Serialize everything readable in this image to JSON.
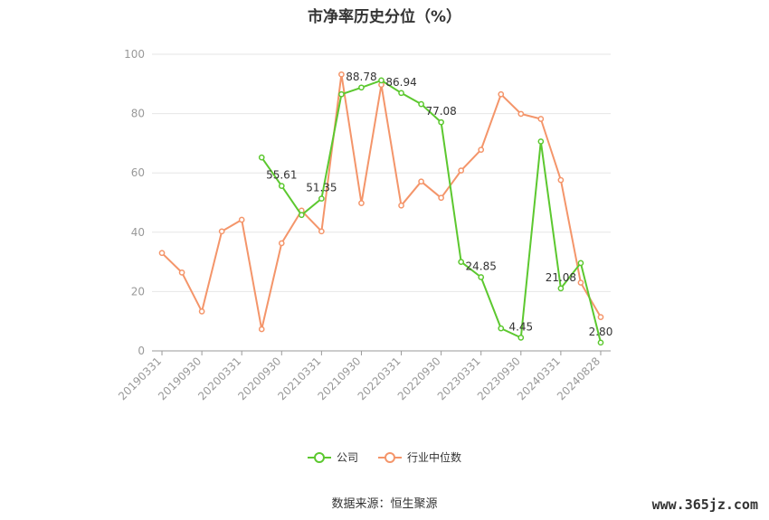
{
  "chart_data": {
    "type": "line",
    "title": "市净率历史分位（%）",
    "xlabel": "",
    "ylabel": "",
    "ylim": [
      0,
      100
    ],
    "yticks": [
      "0",
      "20",
      "40",
      "60",
      "80",
      "100"
    ],
    "grid": true,
    "legend_position": "bottom",
    "x": [
      "20190331",
      "20190630",
      "20190930",
      "20191231",
      "20200331",
      "20200630",
      "20200930",
      "20201231",
      "20210331",
      "20210630",
      "20210930",
      "20211231",
      "20220331",
      "20220630",
      "20220930",
      "20221231",
      "20230331",
      "20230630",
      "20230930",
      "20231231",
      "20240331",
      "20240630",
      "20240828"
    ],
    "x_tick_labels": [
      "20190331",
      "20190930",
      "20200331",
      "20200930",
      "20210331",
      "20210930",
      "20220331",
      "20220930",
      "20230331",
      "20230930",
      "20240331",
      "20240828"
    ],
    "series": [
      {
        "name": "公司",
        "color": "#5cc82f",
        "values": [
          null,
          null,
          null,
          null,
          null,
          65.2,
          55.61,
          45.8,
          51.35,
          86.5,
          88.78,
          91.2,
          86.94,
          83.2,
          77.08,
          30.0,
          24.85,
          7.6,
          4.45,
          70.6,
          21.08,
          29.6,
          2.8
        ],
        "data_labels": {
          "6": "55.61",
          "8": "51.35",
          "10": "88.78",
          "12": "86.94",
          "14": "77.08",
          "16": "24.85",
          "18": "4.45",
          "20": "21.08",
          "22": "2.80"
        }
      },
      {
        "name": "行业中位数",
        "color": "#f4956a",
        "values": [
          33.0,
          26.4,
          13.3,
          40.3,
          44.2,
          7.3,
          36.3,
          47.3,
          40.3,
          93.2,
          49.8,
          89.7,
          49.0,
          57.1,
          51.6,
          60.8,
          67.8,
          86.5,
          79.9,
          78.2,
          57.6,
          23.0,
          11.4
        ]
      }
    ]
  },
  "source_text": "数据来源：恒生聚源",
  "watermark": "www.365jz.com"
}
